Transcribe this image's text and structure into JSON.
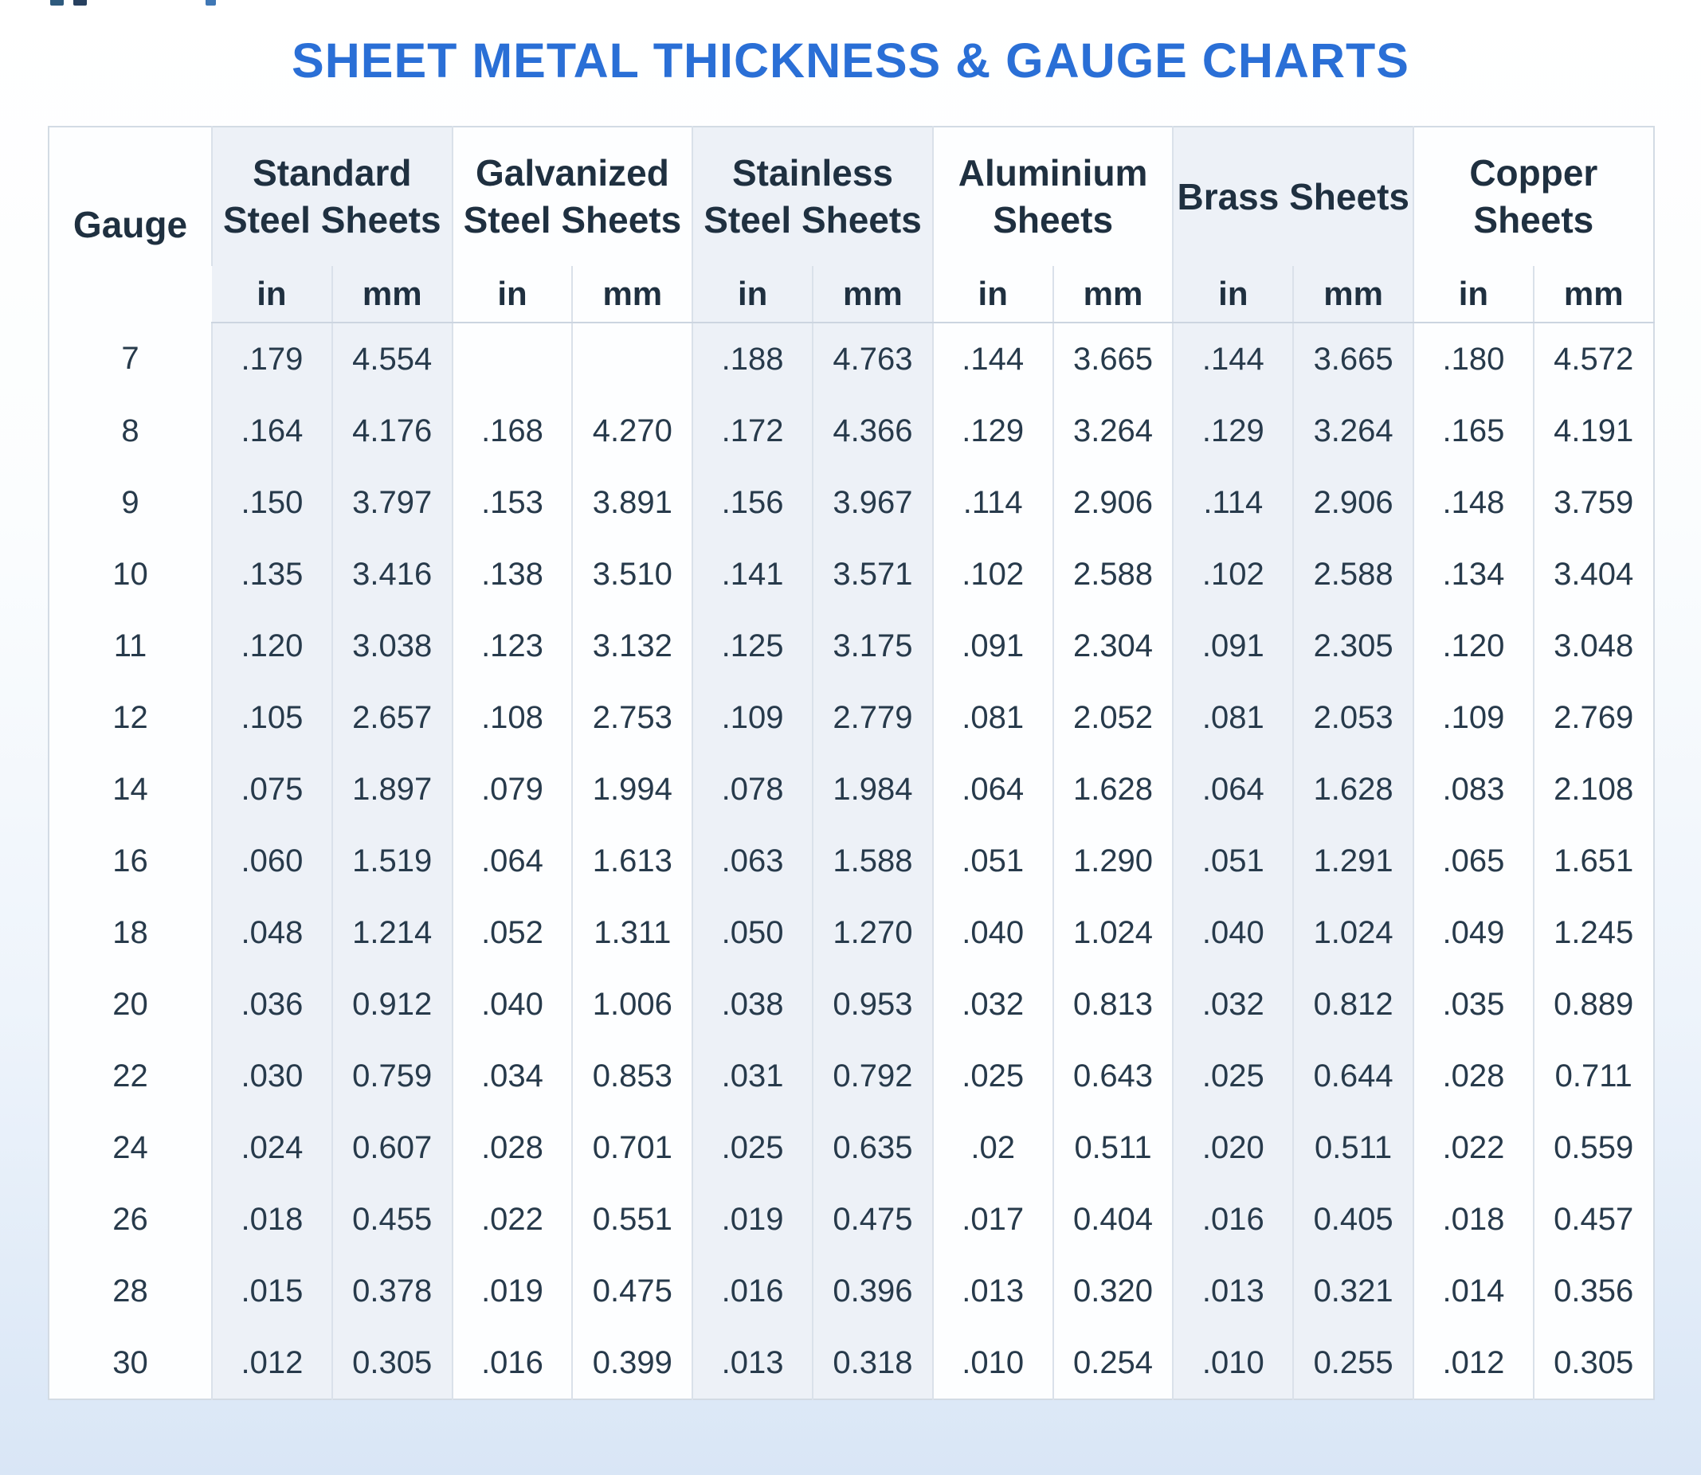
{
  "page": {
    "title": "SHEET METAL THICKNESS & GAUGE CHARTS"
  },
  "colors": {
    "title_blue": "#2a6fd6",
    "header_text": "#1f3040",
    "data_text": "#273a4b",
    "shaded_column_bg": "#edf1f7",
    "table_border": "#d3dbe4",
    "page_bottom_tint": "#d9e6f6"
  },
  "chart_data": {
    "type": "table",
    "title": "SHEET METAL THICKNESS & GAUGE CHARTS",
    "gauge_column_label": "Gauge",
    "column_groups": [
      {
        "label": "Standard Steel Sheets",
        "shaded": true
      },
      {
        "label": "Galvanized Steel Sheets",
        "shaded": false
      },
      {
        "label": "Stainless Steel Sheets",
        "shaded": true
      },
      {
        "label": "Aluminium Sheets",
        "shaded": false
      },
      {
        "label": "Brass Sheets",
        "shaded": true
      },
      {
        "label": "Copper Sheets",
        "shaded": false
      }
    ],
    "unit_labels": [
      "in",
      "mm"
    ],
    "rows": [
      {
        "gauge": "7",
        "values": [
          ".179",
          "4.554",
          "",
          "",
          ".188",
          "4.763",
          ".144",
          "3.665",
          ".144",
          "3.665",
          ".180",
          "4.572"
        ]
      },
      {
        "gauge": "8",
        "values": [
          ".164",
          "4.176",
          ".168",
          "4.270",
          ".172",
          "4.366",
          ".129",
          "3.264",
          ".129",
          "3.264",
          ".165",
          "4.191"
        ]
      },
      {
        "gauge": "9",
        "values": [
          ".150",
          "3.797",
          ".153",
          "3.891",
          ".156",
          "3.967",
          ".114",
          "2.906",
          ".114",
          "2.906",
          ".148",
          "3.759"
        ]
      },
      {
        "gauge": "10",
        "values": [
          ".135",
          "3.416",
          ".138",
          "3.510",
          ".141",
          "3.571",
          ".102",
          "2.588",
          ".102",
          "2.588",
          ".134",
          "3.404"
        ]
      },
      {
        "gauge": "11",
        "values": [
          ".120",
          "3.038",
          ".123",
          "3.132",
          ".125",
          "3.175",
          ".091",
          "2.304",
          ".091",
          "2.305",
          ".120",
          "3.048"
        ]
      },
      {
        "gauge": "12",
        "values": [
          ".105",
          "2.657",
          ".108",
          "2.753",
          ".109",
          "2.779",
          ".081",
          "2.052",
          ".081",
          "2.053",
          ".109",
          "2.769"
        ]
      },
      {
        "gauge": "14",
        "values": [
          ".075",
          "1.897",
          ".079",
          "1.994",
          ".078",
          "1.984",
          ".064",
          "1.628",
          ".064",
          "1.628",
          ".083",
          "2.108"
        ]
      },
      {
        "gauge": "16",
        "values": [
          ".060",
          "1.519",
          ".064",
          "1.613",
          ".063",
          "1.588",
          ".051",
          "1.290",
          ".051",
          "1.291",
          ".065",
          "1.651"
        ]
      },
      {
        "gauge": "18",
        "values": [
          ".048",
          "1.214",
          ".052",
          "1.311",
          ".050",
          "1.270",
          ".040",
          "1.024",
          ".040",
          "1.024",
          ".049",
          "1.245"
        ]
      },
      {
        "gauge": "20",
        "values": [
          ".036",
          "0.912",
          ".040",
          "1.006",
          ".038",
          "0.953",
          ".032",
          "0.813",
          ".032",
          "0.812",
          ".035",
          "0.889"
        ]
      },
      {
        "gauge": "22",
        "values": [
          ".030",
          "0.759",
          ".034",
          "0.853",
          ".031",
          "0.792",
          ".025",
          "0.643",
          ".025",
          "0.644",
          ".028",
          "0.711"
        ]
      },
      {
        "gauge": "24",
        "values": [
          ".024",
          "0.607",
          ".028",
          "0.701",
          ".025",
          "0.635",
          ".02",
          "0.511",
          ".020",
          "0.511",
          ".022",
          "0.559"
        ]
      },
      {
        "gauge": "26",
        "values": [
          ".018",
          "0.455",
          ".022",
          "0.551",
          ".019",
          "0.475",
          ".017",
          "0.404",
          ".016",
          "0.405",
          ".018",
          "0.457"
        ]
      },
      {
        "gauge": "28",
        "values": [
          ".015",
          "0.378",
          ".019",
          "0.475",
          ".016",
          "0.396",
          ".013",
          "0.320",
          ".013",
          "0.321",
          ".014",
          "0.356"
        ]
      },
      {
        "gauge": "30",
        "values": [
          ".012",
          "0.305",
          ".016",
          "0.399",
          ".013",
          "0.318",
          ".010",
          "0.254",
          ".010",
          "0.255",
          ".012",
          "0.305"
        ]
      }
    ]
  }
}
